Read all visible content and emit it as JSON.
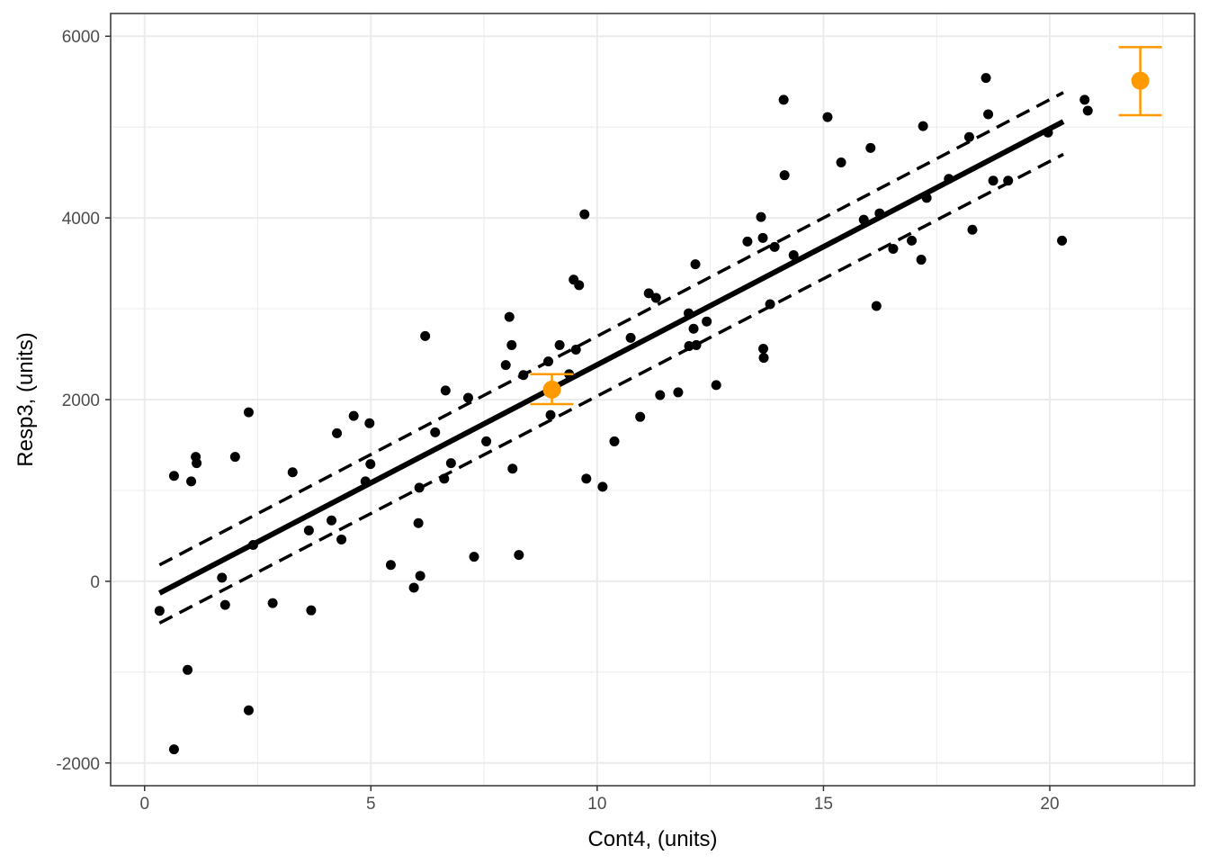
{
  "chart_data": {
    "type": "scatter",
    "xlabel": "Cont4, (units)",
    "ylabel": "Resp3, (units)",
    "xlim": [
      -0.75,
      23.2
    ],
    "ylim": [
      -2250,
      6250
    ],
    "xticks": [
      0,
      5,
      10,
      15,
      20
    ],
    "xtick_labels": [
      "0",
      "5",
      "10",
      "15",
      "20"
    ],
    "yticks": [
      -2000,
      0,
      2000,
      4000,
      6000
    ],
    "ytick_labels": [
      "-2000",
      "0",
      "2000",
      "4000",
      "6000"
    ],
    "grid": true,
    "colors": {
      "points": "#000000",
      "highlight": "#ff9900",
      "grid": "#ebebeb"
    },
    "points": [
      [
        0.33,
        -325
      ],
      [
        0.65,
        1160
      ],
      [
        0.65,
        -1850
      ],
      [
        0.95,
        -975
      ],
      [
        1.03,
        1100
      ],
      [
        1.13,
        1370
      ],
      [
        1.15,
        1300
      ],
      [
        1.71,
        40
      ],
      [
        1.78,
        -260
      ],
      [
        2.0,
        1370
      ],
      [
        2.3,
        1860
      ],
      [
        2.3,
        -1420
      ],
      [
        2.4,
        400
      ],
      [
        2.83,
        -240
      ],
      [
        3.27,
        1200
      ],
      [
        3.63,
        560
      ],
      [
        3.68,
        -320
      ],
      [
        4.13,
        670
      ],
      [
        4.25,
        1630
      ],
      [
        4.35,
        460
      ],
      [
        4.62,
        1820
      ],
      [
        4.88,
        1100
      ],
      [
        4.97,
        1740
      ],
      [
        4.99,
        1290
      ],
      [
        5.44,
        180
      ],
      [
        5.95,
        -70
      ],
      [
        6.05,
        640
      ],
      [
        6.07,
        1030
      ],
      [
        6.09,
        60
      ],
      [
        6.2,
        2700
      ],
      [
        6.42,
        1640
      ],
      [
        6.62,
        1130
      ],
      [
        6.65,
        2100
      ],
      [
        6.77,
        1300
      ],
      [
        7.15,
        2020
      ],
      [
        7.28,
        270
      ],
      [
        7.55,
        1540
      ],
      [
        7.98,
        2380
      ],
      [
        8.06,
        2910
      ],
      [
        8.11,
        2600
      ],
      [
        8.13,
        1240
      ],
      [
        8.27,
        290
      ],
      [
        8.37,
        2270
      ],
      [
        8.92,
        2420
      ],
      [
        8.97,
        1830
      ],
      [
        9.17,
        2600
      ],
      [
        9.38,
        2280
      ],
      [
        9.48,
        3320
      ],
      [
        9.53,
        2550
      ],
      [
        9.6,
        3260
      ],
      [
        9.72,
        4040
      ],
      [
        9.76,
        1130
      ],
      [
        10.12,
        1040
      ],
      [
        10.38,
        1540
      ],
      [
        10.74,
        2680
      ],
      [
        10.95,
        1810
      ],
      [
        11.14,
        3170
      ],
      [
        11.3,
        3120
      ],
      [
        11.39,
        2050
      ],
      [
        11.79,
        2080
      ],
      [
        12.02,
        2950
      ],
      [
        12.03,
        2590
      ],
      [
        12.13,
        2780
      ],
      [
        12.19,
        2600
      ],
      [
        12.17,
        3490
      ],
      [
        12.42,
        2860
      ],
      [
        12.63,
        2160
      ],
      [
        13.32,
        3740
      ],
      [
        13.62,
        4010
      ],
      [
        13.67,
        2560
      ],
      [
        13.66,
        3780
      ],
      [
        13.68,
        2460
      ],
      [
        13.82,
        3050
      ],
      [
        13.92,
        3680
      ],
      [
        14.12,
        5300
      ],
      [
        14.14,
        4470
      ],
      [
        14.34,
        3590
      ],
      [
        15.09,
        5110
      ],
      [
        15.39,
        4610
      ],
      [
        16.04,
        4770
      ],
      [
        15.89,
        3980
      ],
      [
        16.17,
        3030
      ],
      [
        16.24,
        4050
      ],
      [
        16.54,
        3660
      ],
      [
        16.95,
        3750
      ],
      [
        17.16,
        3540
      ],
      [
        17.2,
        5010
      ],
      [
        17.28,
        4220
      ],
      [
        17.77,
        4430
      ],
      [
        18.22,
        4890
      ],
      [
        18.29,
        3870
      ],
      [
        18.59,
        5540
      ],
      [
        18.64,
        5140
      ],
      [
        18.75,
        4410
      ],
      [
        19.08,
        4410
      ],
      [
        19.96,
        4940
      ],
      [
        20.27,
        3750
      ],
      [
        20.77,
        5300
      ],
      [
        20.84,
        5180
      ]
    ],
    "fit_line": {
      "x": [
        0.33,
        20.3
      ],
      "y": [
        -130,
        5060
      ]
    },
    "confidence_band": {
      "upper": {
        "x": [
          0.33,
          20.3
        ],
        "y": [
          180,
          5380
        ]
      },
      "lower": {
        "x": [
          0.33,
          20.3
        ],
        "y": [
          -460,
          4700
        ]
      }
    },
    "highlighted_points": [
      {
        "x": 9.0,
        "y": 2110,
        "ymin": 1950,
        "ymax": 2280
      },
      {
        "x": 22.0,
        "y": 5510,
        "ymin": 5130,
        "ymax": 5880
      }
    ]
  }
}
